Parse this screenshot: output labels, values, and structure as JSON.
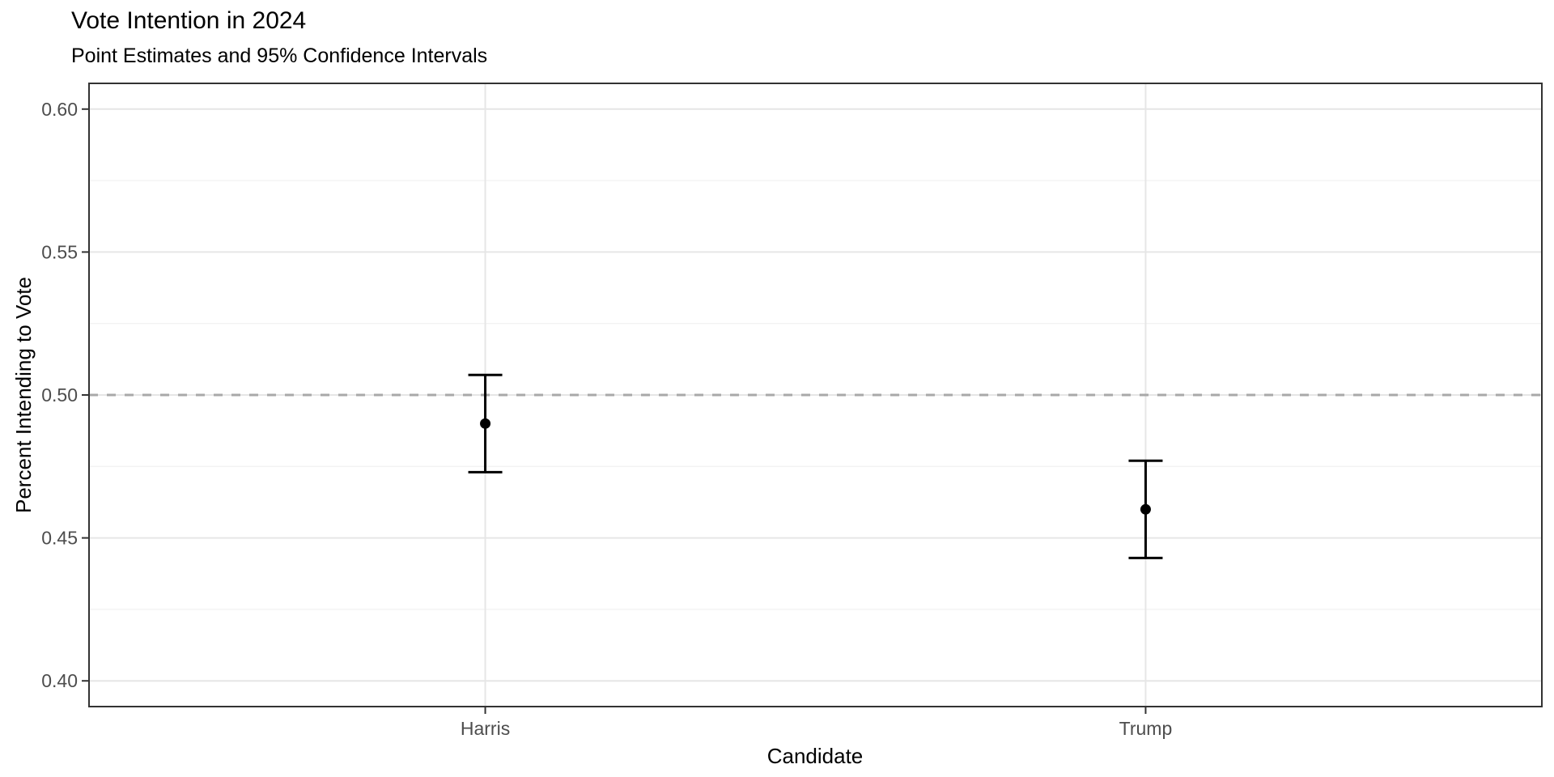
{
  "chart_data": {
    "type": "scatter",
    "title": "Vote Intention in 2024",
    "subtitle": "Point Estimates and 95% Confidence Intervals",
    "xlabel": "Candidate",
    "ylabel": "Percent Intending to Vote",
    "categories": [
      "Harris",
      "Trump"
    ],
    "series": [
      {
        "name": "point_estimate",
        "values": [
          0.49,
          0.46
        ]
      },
      {
        "name": "ci_lower_95",
        "values": [
          0.473,
          0.443
        ]
      },
      {
        "name": "ci_upper_95",
        "values": [
          0.507,
          0.477
        ]
      }
    ],
    "reference_line": {
      "value": 0.5,
      "style": "dashed",
      "color": "#a9a9a9"
    },
    "yticks": [
      0.4,
      0.45,
      0.5,
      0.55,
      0.6
    ],
    "ytick_labels": [
      "0.40",
      "0.45",
      "0.50",
      "0.55",
      "0.60"
    ],
    "ylim": [
      0.391,
      0.609
    ],
    "grid": {
      "major": true,
      "minor": true
    },
    "legend_position": "none",
    "colors": {
      "point": "#000000",
      "error_bar": "#000000",
      "grid_major": "#e6e6e6",
      "grid_minor": "#f2f2f2",
      "panel_border": "#333333",
      "tick_mark": "#333333",
      "tick_label": "#4d4d4d",
      "axis_title": "#000000",
      "background": "#ffffff"
    }
  }
}
